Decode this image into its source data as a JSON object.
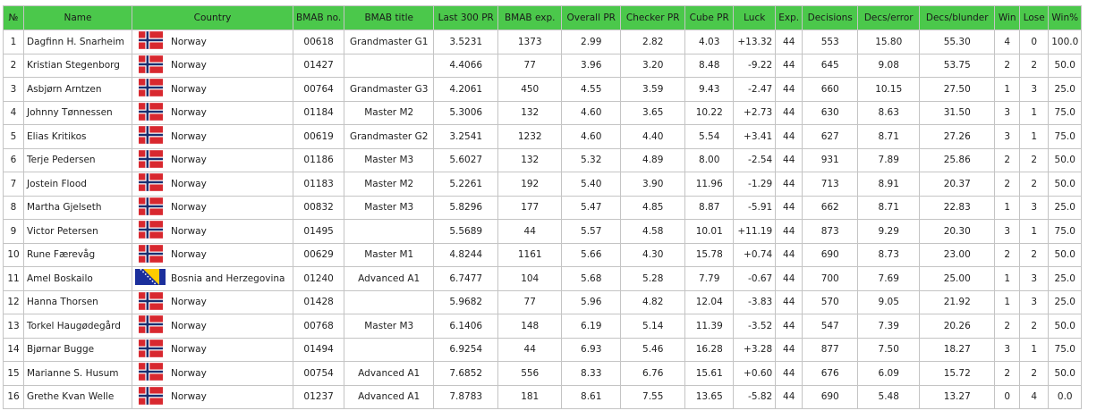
{
  "table": {
    "headers": [
      "№",
      "Name",
      "Country",
      "BMAB no.",
      "BMAB title",
      "Last 300 PR",
      "BMAB exp.",
      "Overall PR",
      "Checker PR",
      "Cube PR",
      "Luck",
      "Exp.",
      "Decisions",
      "Decs/error",
      "Decs/blunder",
      "Win",
      "Lose",
      "Win%"
    ],
    "rows": [
      {
        "n": "1",
        "name": "Dagfinn H. Snarheim",
        "flag": "norway-flag",
        "country": "Norway",
        "bmab_no": "00618",
        "title": "Grandmaster G1",
        "last300": "3.5231",
        "bmab_exp": "1373",
        "overall": "2.99",
        "checker": "2.82",
        "cube": "4.03",
        "luck": "+13.32",
        "exp": "44",
        "decisions": "553",
        "decs_error": "15.80",
        "decs_blunder": "55.30",
        "win": "4",
        "lose": "0",
        "winpct": "100.0"
      },
      {
        "n": "2",
        "name": "Kristian Stegenborg",
        "flag": "norway-flag",
        "country": "Norway",
        "bmab_no": "01427",
        "title": "",
        "last300": "4.4066",
        "bmab_exp": "77",
        "overall": "3.96",
        "checker": "3.20",
        "cube": "8.48",
        "luck": "-9.22",
        "exp": "44",
        "decisions": "645",
        "decs_error": "9.08",
        "decs_blunder": "53.75",
        "win": "2",
        "lose": "2",
        "winpct": "50.0"
      },
      {
        "n": "3",
        "name": "Asbjørn Arntzen",
        "flag": "norway-flag",
        "country": "Norway",
        "bmab_no": "00764",
        "title": "Grandmaster G3",
        "last300": "4.2061",
        "bmab_exp": "450",
        "overall": "4.55",
        "checker": "3.59",
        "cube": "9.43",
        "luck": "-2.47",
        "exp": "44",
        "decisions": "660",
        "decs_error": "10.15",
        "decs_blunder": "27.50",
        "win": "1",
        "lose": "3",
        "winpct": "25.0"
      },
      {
        "n": "4",
        "name": "Johnny Tønnessen",
        "flag": "norway-flag",
        "country": "Norway",
        "bmab_no": "01184",
        "title": "Master M2",
        "last300": "5.3006",
        "bmab_exp": "132",
        "overall": "4.60",
        "checker": "3.65",
        "cube": "10.22",
        "luck": "+2.73",
        "exp": "44",
        "decisions": "630",
        "decs_error": "8.63",
        "decs_blunder": "31.50",
        "win": "3",
        "lose": "1",
        "winpct": "75.0"
      },
      {
        "n": "5",
        "name": "Elias Kritikos",
        "flag": "norway-flag",
        "country": "Norway",
        "bmab_no": "00619",
        "title": "Grandmaster G2",
        "last300": "3.2541",
        "bmab_exp": "1232",
        "overall": "4.60",
        "checker": "4.40",
        "cube": "5.54",
        "luck": "+3.41",
        "exp": "44",
        "decisions": "627",
        "decs_error": "8.71",
        "decs_blunder": "27.26",
        "win": "3",
        "lose": "1",
        "winpct": "75.0"
      },
      {
        "n": "6",
        "name": "Terje Pedersen",
        "flag": "norway-flag",
        "country": "Norway",
        "bmab_no": "01186",
        "title": "Master M3",
        "last300": "5.6027",
        "bmab_exp": "132",
        "overall": "5.32",
        "checker": "4.89",
        "cube": "8.00",
        "luck": "-2.54",
        "exp": "44",
        "decisions": "931",
        "decs_error": "7.89",
        "decs_blunder": "25.86",
        "win": "2",
        "lose": "2",
        "winpct": "50.0"
      },
      {
        "n": "7",
        "name": "Jostein Flood",
        "flag": "norway-flag",
        "country": "Norway",
        "bmab_no": "01183",
        "title": "Master M2",
        "last300": "5.2261",
        "bmab_exp": "192",
        "overall": "5.40",
        "checker": "3.90",
        "cube": "11.96",
        "luck": "-1.29",
        "exp": "44",
        "decisions": "713",
        "decs_error": "8.91",
        "decs_blunder": "20.37",
        "win": "2",
        "lose": "2",
        "winpct": "50.0"
      },
      {
        "n": "8",
        "name": "Martha Gjelseth",
        "flag": "norway-flag",
        "country": "Norway",
        "bmab_no": "00832",
        "title": "Master M3",
        "last300": "5.8296",
        "bmab_exp": "177",
        "overall": "5.47",
        "checker": "4.85",
        "cube": "8.87",
        "luck": "-5.91",
        "exp": "44",
        "decisions": "662",
        "decs_error": "8.71",
        "decs_blunder": "22.83",
        "win": "1",
        "lose": "3",
        "winpct": "25.0"
      },
      {
        "n": "9",
        "name": "Victor Petersen",
        "flag": "norway-flag",
        "country": "Norway",
        "bmab_no": "01495",
        "title": "",
        "last300": "5.5689",
        "bmab_exp": "44",
        "overall": "5.57",
        "checker": "4.58",
        "cube": "10.01",
        "luck": "+11.19",
        "exp": "44",
        "decisions": "873",
        "decs_error": "9.29",
        "decs_blunder": "20.30",
        "win": "3",
        "lose": "1",
        "winpct": "75.0"
      },
      {
        "n": "10",
        "name": "Rune Færevåg",
        "flag": "norway-flag",
        "country": "Norway",
        "bmab_no": "00629",
        "title": "Master M1",
        "last300": "4.8244",
        "bmab_exp": "1161",
        "overall": "5.66",
        "checker": "4.30",
        "cube": "15.78",
        "luck": "+0.74",
        "exp": "44",
        "decisions": "690",
        "decs_error": "8.73",
        "decs_blunder": "23.00",
        "win": "2",
        "lose": "2",
        "winpct": "50.0"
      },
      {
        "n": "11",
        "name": "Amel Boskailo",
        "flag": "bosnia-flag",
        "country": "Bosnia and Herzegovina",
        "bmab_no": "01240",
        "title": "Advanced A1",
        "last300": "6.7477",
        "bmab_exp": "104",
        "overall": "5.68",
        "checker": "5.28",
        "cube": "7.79",
        "luck": "-0.67",
        "exp": "44",
        "decisions": "700",
        "decs_error": "7.69",
        "decs_blunder": "25.00",
        "win": "1",
        "lose": "3",
        "winpct": "25.0"
      },
      {
        "n": "12",
        "name": "Hanna Thorsen",
        "flag": "norway-flag",
        "country": "Norway",
        "bmab_no": "01428",
        "title": "",
        "last300": "5.9682",
        "bmab_exp": "77",
        "overall": "5.96",
        "checker": "4.82",
        "cube": "12.04",
        "luck": "-3.83",
        "exp": "44",
        "decisions": "570",
        "decs_error": "9.05",
        "decs_blunder": "21.92",
        "win": "1",
        "lose": "3",
        "winpct": "25.0"
      },
      {
        "n": "13",
        "name": "Torkel Haugødegård",
        "flag": "norway-flag",
        "country": "Norway",
        "bmab_no": "00768",
        "title": "Master M3",
        "last300": "6.1406",
        "bmab_exp": "148",
        "overall": "6.19",
        "checker": "5.14",
        "cube": "11.39",
        "luck": "-3.52",
        "exp": "44",
        "decisions": "547",
        "decs_error": "7.39",
        "decs_blunder": "20.26",
        "win": "2",
        "lose": "2",
        "winpct": "50.0"
      },
      {
        "n": "14",
        "name": "Bjørnar Bugge",
        "flag": "norway-flag",
        "country": "Norway",
        "bmab_no": "01494",
        "title": "",
        "last300": "6.9254",
        "bmab_exp": "44",
        "overall": "6.93",
        "checker": "5.46",
        "cube": "16.28",
        "luck": "+3.28",
        "exp": "44",
        "decisions": "877",
        "decs_error": "7.50",
        "decs_blunder": "18.27",
        "win": "3",
        "lose": "1",
        "winpct": "75.0"
      },
      {
        "n": "15",
        "name": "Marianne S. Husum",
        "flag": "norway-flag",
        "country": "Norway",
        "bmab_no": "00754",
        "title": "Advanced A1",
        "last300": "7.6852",
        "bmab_exp": "556",
        "overall": "8.33",
        "checker": "6.76",
        "cube": "15.61",
        "luck": "+0.60",
        "exp": "44",
        "decisions": "676",
        "decs_error": "6.09",
        "decs_blunder": "15.72",
        "win": "2",
        "lose": "2",
        "winpct": "50.0"
      },
      {
        "n": "16",
        "name": "Grethe Kvan Welle",
        "flag": "norway-flag",
        "country": "Norway",
        "bmab_no": "01237",
        "title": "Advanced A1",
        "last300": "7.8783",
        "bmab_exp": "181",
        "overall": "8.61",
        "checker": "7.55",
        "cube": "13.65",
        "luck": "-5.82",
        "exp": "44",
        "decisions": "690",
        "decs_error": "5.48",
        "decs_blunder": "13.27",
        "win": "0",
        "lose": "4",
        "winpct": "0.0"
      }
    ]
  },
  "colors": {
    "header_bg": "#4bc84b",
    "border": "#c4c4c4",
    "norway_red": "#d8282f",
    "norway_blue": "#1a2f70",
    "bosnia_blue": "#1b2f9c",
    "bosnia_yellow": "#fecb00"
  }
}
